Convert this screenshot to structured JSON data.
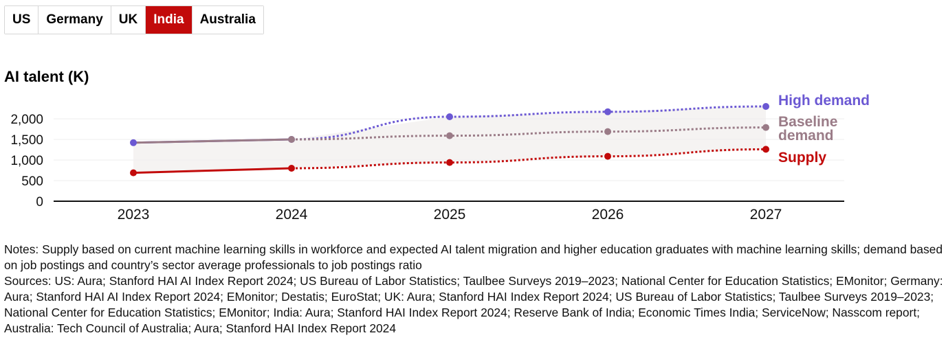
{
  "tabs": [
    {
      "label": "US"
    },
    {
      "label": "Germany"
    },
    {
      "label": "UK"
    },
    {
      "label": "India",
      "active": true
    },
    {
      "label": "Australia"
    }
  ],
  "colors": {
    "active_tab": "#c20a0a",
    "high_demand": "#6b58d3",
    "baseline_demand": "#9a7b87",
    "supply": "#c20a0a"
  },
  "chart_data": {
    "type": "line",
    "title": "AI talent (K)",
    "x": [
      "2023",
      "2024",
      "2025",
      "2026",
      "2027"
    ],
    "yticks": [
      "2,000",
      "1,500",
      "1,000",
      "500",
      "0"
    ],
    "ylim": [
      0,
      2300
    ],
    "grid": true,
    "projection_starts_at": "2024",
    "series": [
      {
        "name": "High demand",
        "values": [
          1420,
          1500,
          2050,
          2170,
          2300
        ]
      },
      {
        "name": "Baseline demand",
        "values": [
          1420,
          1500,
          1590,
          1690,
          1790
        ]
      },
      {
        "name": "Supply",
        "values": [
          690,
          800,
          940,
          1090,
          1260
        ]
      }
    ]
  },
  "labels": {
    "high_demand": "High demand",
    "baseline_line1": "Baseline",
    "baseline_line2": "demand",
    "supply": "Supply"
  },
  "notes": "Notes: Supply based on current machine learning skills in workforce and expected AI talent migration and higher education graduates with machine learning skills; demand based on job postings and country’s sector average professionals to job postings ratio",
  "sources": "Sources: US: Aura; Stanford HAI AI Index Report 2024; US Bureau of Labor Statistics; Taulbee Surveys 2019–2023; National Center for Education Statistics; EMonitor; Germany: Aura; Stanford HAI AI Index Report 2024; EMonitor; Destatis; EuroStat; UK: Aura; Stanford HAI Index Report 2024; US Bureau of Labor Statistics; Taulbee Surveys 2019–2023; National Center for Education Statistics; EMonitor; India: Aura; Stanford HAI Index Report 2024; Reserve Bank of India; Economic Times India; ServiceNow; Nasscom report; Australia: Tech Council of Australia; Aura; Stanford HAI Index Report 2024"
}
